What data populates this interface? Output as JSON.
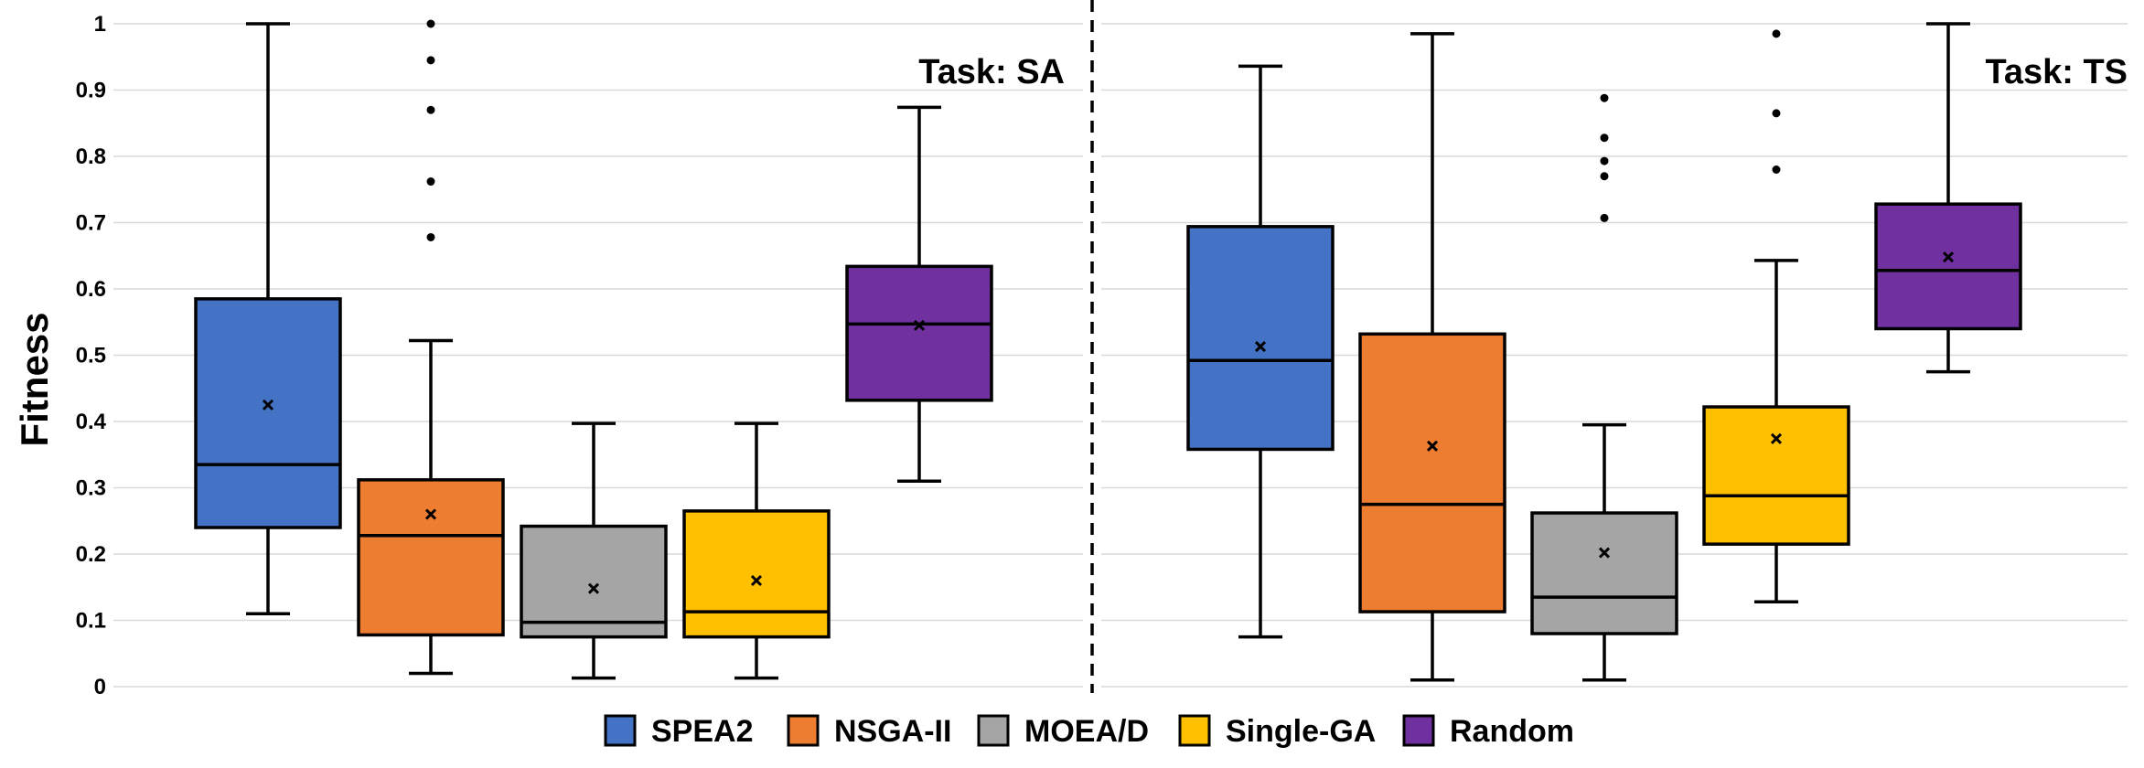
{
  "chart_data": {
    "type": "box",
    "ylabel": "Fitness",
    "ylim": [
      0,
      1
    ],
    "yticks": [
      0,
      0.1,
      0.2,
      0.3,
      0.4,
      0.5,
      0.6,
      0.7,
      0.8,
      0.9,
      1
    ],
    "ytick_labels": [
      "0",
      "0.1",
      "0.2",
      "0.3",
      "0.4",
      "0.5",
      "0.6",
      "0.7",
      "0.8",
      "0.9",
      "1"
    ],
    "grid": true,
    "legend_position": "bottom-center",
    "series": [
      {
        "name": "SPEA2",
        "color": "#4472C4"
      },
      {
        "name": "NSGA-II",
        "color": "#ED7D31"
      },
      {
        "name": "MOEA/D",
        "color": "#A5A5A5"
      },
      {
        "name": "Single-GA",
        "color": "#FFC000"
      },
      {
        "name": "Random",
        "color": "#7030A0"
      }
    ],
    "panels": [
      {
        "title": "Task: SA",
        "boxes": [
          {
            "min": 0.11,
            "q1": 0.24,
            "median": 0.335,
            "q3": 0.585,
            "max": 1.0,
            "mean": 0.425,
            "outliers": []
          },
          {
            "min": 0.02,
            "q1": 0.078,
            "median": 0.228,
            "q3": 0.312,
            "max": 0.522,
            "mean": 0.26,
            "outliers": [
              0.678,
              0.762,
              0.87,
              0.945,
              1.0
            ]
          },
          {
            "min": 0.013,
            "q1": 0.075,
            "median": 0.097,
            "q3": 0.242,
            "max": 0.397,
            "mean": 0.148,
            "outliers": []
          },
          {
            "min": 0.013,
            "q1": 0.075,
            "median": 0.113,
            "q3": 0.265,
            "max": 0.397,
            "mean": 0.16,
            "outliers": []
          },
          {
            "min": 0.31,
            "q1": 0.432,
            "median": 0.547,
            "q3": 0.634,
            "max": 0.874,
            "mean": 0.545,
            "outliers": []
          }
        ]
      },
      {
        "title": "Task: TS",
        "boxes": [
          {
            "min": 0.075,
            "q1": 0.358,
            "median": 0.492,
            "q3": 0.694,
            "max": 0.936,
            "mean": 0.513,
            "outliers": []
          },
          {
            "min": 0.01,
            "q1": 0.113,
            "median": 0.275,
            "q3": 0.532,
            "max": 0.985,
            "mean": 0.363,
            "outliers": []
          },
          {
            "min": 0.01,
            "q1": 0.08,
            "median": 0.135,
            "q3": 0.262,
            "max": 0.395,
            "mean": 0.202,
            "outliers": [
              0.707,
              0.77,
              0.793,
              0.828,
              0.888
            ]
          },
          {
            "min": 0.128,
            "q1": 0.215,
            "median": 0.288,
            "q3": 0.422,
            "max": 0.643,
            "mean": 0.374,
            "outliers": [
              0.78,
              0.865,
              0.985
            ]
          },
          {
            "min": 0.475,
            "q1": 0.54,
            "median": 0.628,
            "q3": 0.728,
            "max": 1.0,
            "mean": 0.648,
            "outliers": []
          }
        ]
      }
    ]
  }
}
